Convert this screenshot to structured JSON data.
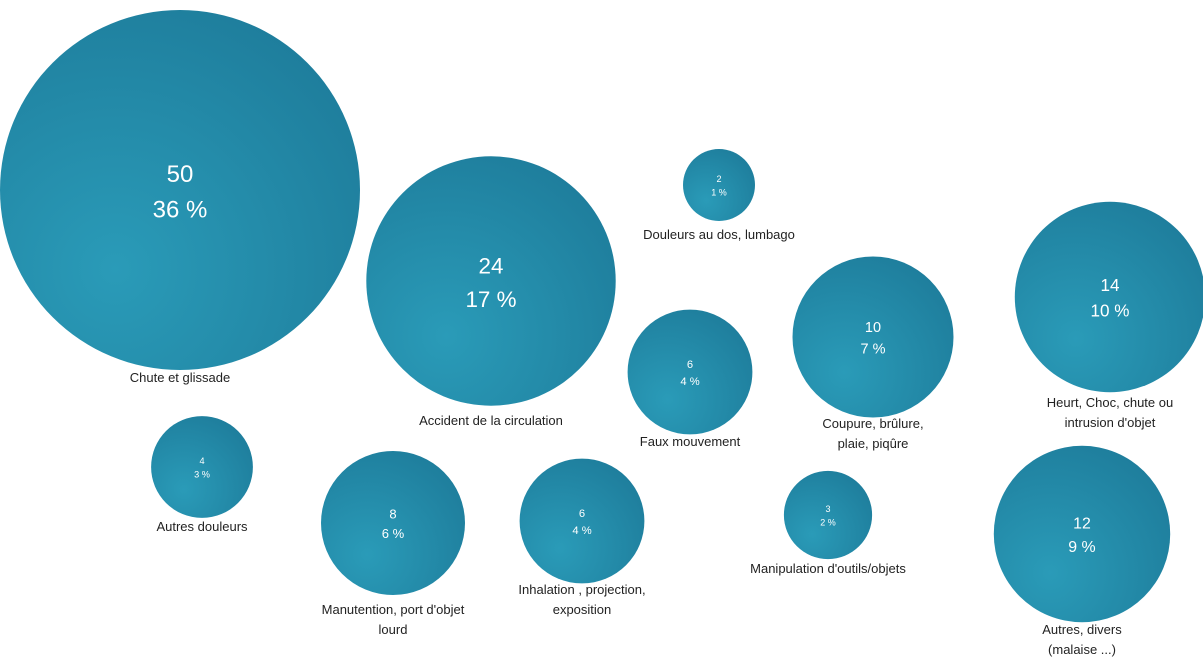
{
  "chart_data": {
    "type": "bubble",
    "title": "",
    "bubble_color": "#2a9bb8",
    "bubble_color_dark": "#1c7897",
    "bubbles": [
      {
        "label": "Chute et glissade",
        "count": 50,
        "percent": "36 %"
      },
      {
        "label": "Accident de la circulation",
        "count": 24,
        "percent": "17 %"
      },
      {
        "label": "Douleurs au dos, lumbago",
        "count": 2,
        "percent": "1 %"
      },
      {
        "label": "Faux mouvement",
        "count": 6,
        "percent": "4 %"
      },
      {
        "label": "Coupure, brûlure, plaie, piqûre",
        "count": 10,
        "percent": "7 %"
      },
      {
        "label": "Heurt, Choc, chute ou intrusion d'objet",
        "count": 14,
        "percent": "10 %"
      },
      {
        "label": "Autres douleurs",
        "count": 4,
        "percent": "3 %"
      },
      {
        "label": "Manutention, port d'objet lourd",
        "count": 8,
        "percent": "6 %"
      },
      {
        "label": "Inhalation , projection, exposition",
        "count": 6,
        "percent": "4 %"
      },
      {
        "label": "Manipulation d'outils/objets",
        "count": 3,
        "percent": "2 %"
      },
      {
        "label": "Autres, divers (malaise ...)",
        "count": 12,
        "percent": "9 %"
      }
    ]
  }
}
